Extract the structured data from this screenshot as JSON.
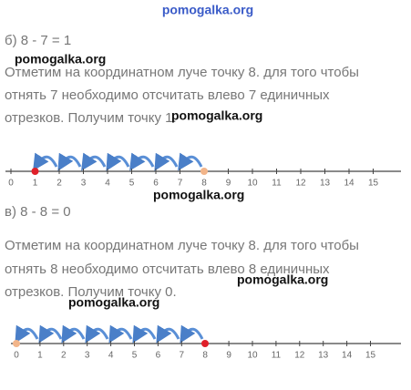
{
  "watermarks": [
    "pomogalka.org",
    "pomogalka.org",
    "pomogalka.org",
    "pomogalka.org",
    "pomogalka.org",
    "pomogalka.org"
  ],
  "part_b": {
    "label": "б) 8 - 7 = 1",
    "lines": [
      "Отметим на координатном луче точку 8. для того чтобы",
      "отнять 7 необходимо отсчитать влево 7 единичных",
      "отрезков. Получим точку 1."
    ],
    "number_line": [
      0,
      1,
      2,
      3,
      4,
      5,
      6,
      7,
      8,
      9,
      10,
      11,
      12,
      13,
      14,
      15
    ]
  },
  "part_v": {
    "label": "в) 8 - 8 = 0",
    "lines": [
      "Отметим на координатном луче точку 8. для того чтобы",
      "отнять 8 необходимо отсчитать влево 8 единичных",
      "отрезков. Получим точку 0."
    ],
    "number_line": [
      0,
      1,
      2,
      3,
      4,
      5,
      6,
      7,
      8,
      9,
      10,
      11,
      12,
      13,
      14,
      15
    ]
  }
}
